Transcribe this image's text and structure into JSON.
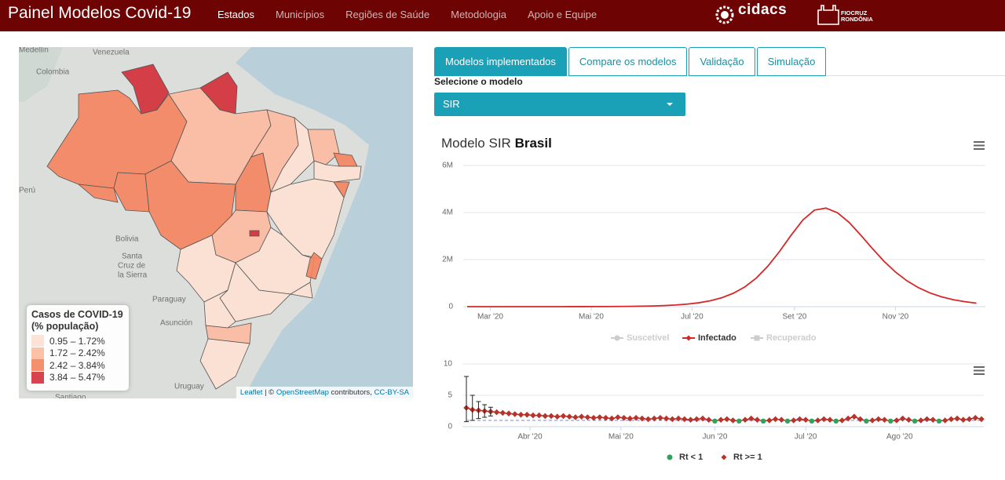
{
  "navbar": {
    "title": "Painel Modelos Covid-19",
    "links": [
      "Estados",
      "Municípios",
      "Regiões de Saúde",
      "Metodologia",
      "Apoio e Equipe"
    ],
    "active": 0,
    "logos": [
      "cidacs",
      "FIOCRUZ",
      "RONDÔNIA"
    ]
  },
  "map": {
    "place_labels": [
      "Medellín",
      "Venezuela",
      "Colombia",
      "Perú",
      "Bolivia",
      "Santa",
      "Cruz de",
      "la Sierra",
      "Paraguay",
      "Asunción",
      "Uruguay",
      "Santiago"
    ],
    "legend": {
      "title": [
        "Casos de COVID-19",
        "(% população)"
      ],
      "items": [
        {
          "label": "0.95 – 1.72%",
          "color": "#fde0d2"
        },
        {
          "label": "1.72 – 2.42%",
          "color": "#fbbb9f"
        },
        {
          "label": "2.42 – 3.84%",
          "color": "#f4845f"
        },
        {
          "label": "3.84 – 5.47%",
          "color": "#d1303a"
        }
      ]
    },
    "attribution": [
      "Leaflet",
      "| ©",
      "OpenStreetMap",
      "contributors,",
      "CC-BY-SA"
    ]
  },
  "tabs": {
    "items": [
      "Modelos implementados",
      "Compare os modelos",
      "Validação",
      "Simulação"
    ],
    "active": 0
  },
  "select": {
    "label": "Selecione o modelo",
    "value": "SIR"
  },
  "chart_data": [
    {
      "type": "line",
      "title": [
        "Modelo SIR",
        "Brasil"
      ],
      "x": [
        46,
        53,
        60,
        67,
        74,
        81,
        88,
        95,
        102,
        109,
        116,
        123,
        130,
        137,
        144,
        151,
        158,
        165,
        172,
        179,
        186,
        193,
        200,
        207,
        214,
        221,
        228,
        235,
        242,
        249,
        256,
        263,
        270,
        277,
        284,
        291,
        298,
        305,
        312,
        319,
        326,
        333,
        340,
        347,
        354
      ],
      "xlim": [
        46,
        358
      ],
      "xticks": [
        {
          "value": 60,
          "label": "Mar '20"
        },
        {
          "value": 121,
          "label": "Mai '20"
        },
        {
          "value": 182,
          "label": "Jul '20"
        },
        {
          "value": 244,
          "label": "Set '20"
        },
        {
          "value": 305,
          "label": "Nov '20"
        }
      ],
      "ylim": [
        0,
        6000000
      ],
      "yticks": [
        0,
        {
          "value": 2000000,
          "label": "2M"
        },
        {
          "value": 4000000,
          "label": "4M"
        },
        {
          "value": 6000000,
          "label": "6M"
        }
      ],
      "grid": true,
      "series": [
        {
          "name": "Suscetível",
          "color": "#7cb5ec",
          "marker": "circle",
          "visible": false
        },
        {
          "name": "Infectado",
          "color": "#d62728",
          "marker": "diamond",
          "visible": true,
          "values": [
            31,
            48,
            74,
            114,
            175,
            269,
            413,
            634,
            975,
            1496,
            2300,
            3535,
            5433,
            8350,
            12800,
            19600,
            30000,
            46300,
            70800,
            108500,
            165000,
            251000,
            379000,
            570000,
            842000,
            1224000,
            1732000,
            2354000,
            3043000,
            3681000,
            4103000,
            4189000,
            3989000,
            3581000,
            3045000,
            2478000,
            1938000,
            1475000,
            1098000,
            804000,
            581000,
            416000,
            297000,
            211000,
            149000
          ]
        },
        {
          "name": "Recuperado",
          "color": "#2ca02c",
          "marker": "square",
          "visible": false
        }
      ]
    },
    {
      "type": "line",
      "x": [
        70,
        72,
        74,
        76,
        78,
        80,
        82,
        84,
        86,
        88,
        90,
        92,
        94,
        96,
        98,
        100,
        102,
        104,
        106,
        108,
        110,
        112,
        114,
        116,
        118,
        120,
        122,
        124,
        126,
        128,
        130,
        132,
        134,
        136,
        138,
        140,
        142,
        144,
        146,
        148,
        150,
        152,
        154,
        156,
        158,
        160,
        162,
        164,
        166,
        168,
        170,
        172,
        174,
        176,
        178,
        180,
        182,
        184,
        186,
        188,
        190,
        192,
        194,
        196,
        198,
        200,
        202,
        204,
        206,
        208,
        210,
        212,
        214,
        216,
        218,
        220,
        222,
        224,
        226,
        228,
        230,
        232,
        234,
        236,
        238,
        240
      ],
      "xlim": [
        70,
        240
      ],
      "xticks": [
        {
          "value": 91,
          "label": "Abr '20"
        },
        {
          "value": 121,
          "label": "Mai '20"
        },
        {
          "value": 152,
          "label": "Jun '20"
        },
        {
          "value": 182,
          "label": "Jul '20"
        },
        {
          "value": 213,
          "label": "Ago '20"
        }
      ],
      "ylim": [
        0,
        10
      ],
      "yticks": [
        0,
        5,
        10
      ],
      "grid": true,
      "series": [
        {
          "color": "#a52a2a",
          "values": [
            3.0,
            2.7,
            2.6,
            2.5,
            2.4,
            2.3,
            2.2,
            2.1,
            2.0,
            1.9,
            1.9,
            1.8,
            1.8,
            1.7,
            1.7,
            1.6,
            1.7,
            1.6,
            1.5,
            1.6,
            1.5,
            1.4,
            1.5,
            1.4,
            1.3,
            1.5,
            1.4,
            1.3,
            1.4,
            1.3,
            1.2,
            1.3,
            1.4,
            1.3,
            1.2,
            1.3,
            1.2,
            1.1,
            1.2,
            1.3,
            1.1,
            0.9,
            1.1,
            1.2,
            1.0,
            0.9,
            1.1,
            1.3,
            1.1,
            0.9,
            1.0,
            1.2,
            1.1,
            0.9,
            1.0,
            1.2,
            1.1,
            0.9,
            1.0,
            1.2,
            1.1,
            0.9,
            1.0,
            1.3,
            1.6,
            1.2,
            0.9,
            1.0,
            1.2,
            1.1,
            0.9,
            1.0,
            1.3,
            1.1,
            0.9,
            1.0,
            1.2,
            1.1,
            0.9,
            1.0,
            1.2,
            1.3,
            1.1,
            1.2,
            1.4,
            1.2
          ]
        }
      ],
      "threshold": 1,
      "classes": [
        {
          "name": "Rt < 1",
          "color": "#2ea35b",
          "marker": "circle"
        },
        {
          "name": "Rt >= 1",
          "color": "#b8332a",
          "marker": "diamond"
        }
      ],
      "error_bars": {
        "x": [
          70,
          72,
          74,
          76,
          78
        ],
        "lower": [
          0.8,
          1.0,
          1.3,
          1.5,
          1.7
        ],
        "upper": [
          8.0,
          5.0,
          4.0,
          3.5,
          3.1
        ]
      },
      "reference_line": 1
    }
  ]
}
